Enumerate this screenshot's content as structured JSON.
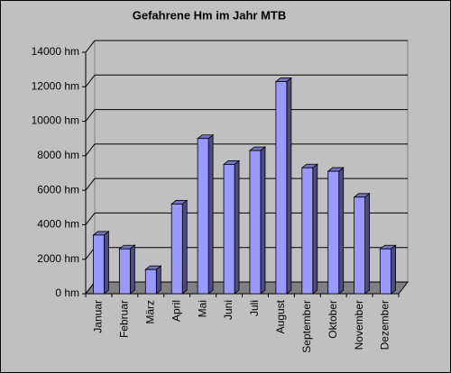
{
  "chart_data": {
    "type": "bar",
    "title": "Gefahrene Hm im Jahr MTB",
    "categories": [
      "Januar",
      "Februar",
      "März",
      "April",
      "Mai",
      "Juni",
      "Juli",
      "August",
      "September",
      "Oktober",
      "November",
      "Dezember"
    ],
    "values": [
      3400,
      2600,
      1400,
      5200,
      9000,
      7500,
      8300,
      12300,
      7300,
      7100,
      5600,
      2600
    ],
    "color": "#9999ff",
    "ylim": [
      0,
      14000
    ],
    "yticks": [
      {
        "value": 0,
        "label": "0 hm"
      },
      {
        "value": 2000,
        "label": "2000 hm"
      },
      {
        "value": 4000,
        "label": "4000 hm"
      },
      {
        "value": 6000,
        "label": "6000 hm"
      },
      {
        "value": 8000,
        "label": "8000 hm"
      },
      {
        "value": 10000,
        "label": "10000 hm"
      },
      {
        "value": 12000,
        "label": "12000 hm"
      },
      {
        "value": 14000,
        "label": "14000 hm"
      }
    ],
    "grid": true
  }
}
